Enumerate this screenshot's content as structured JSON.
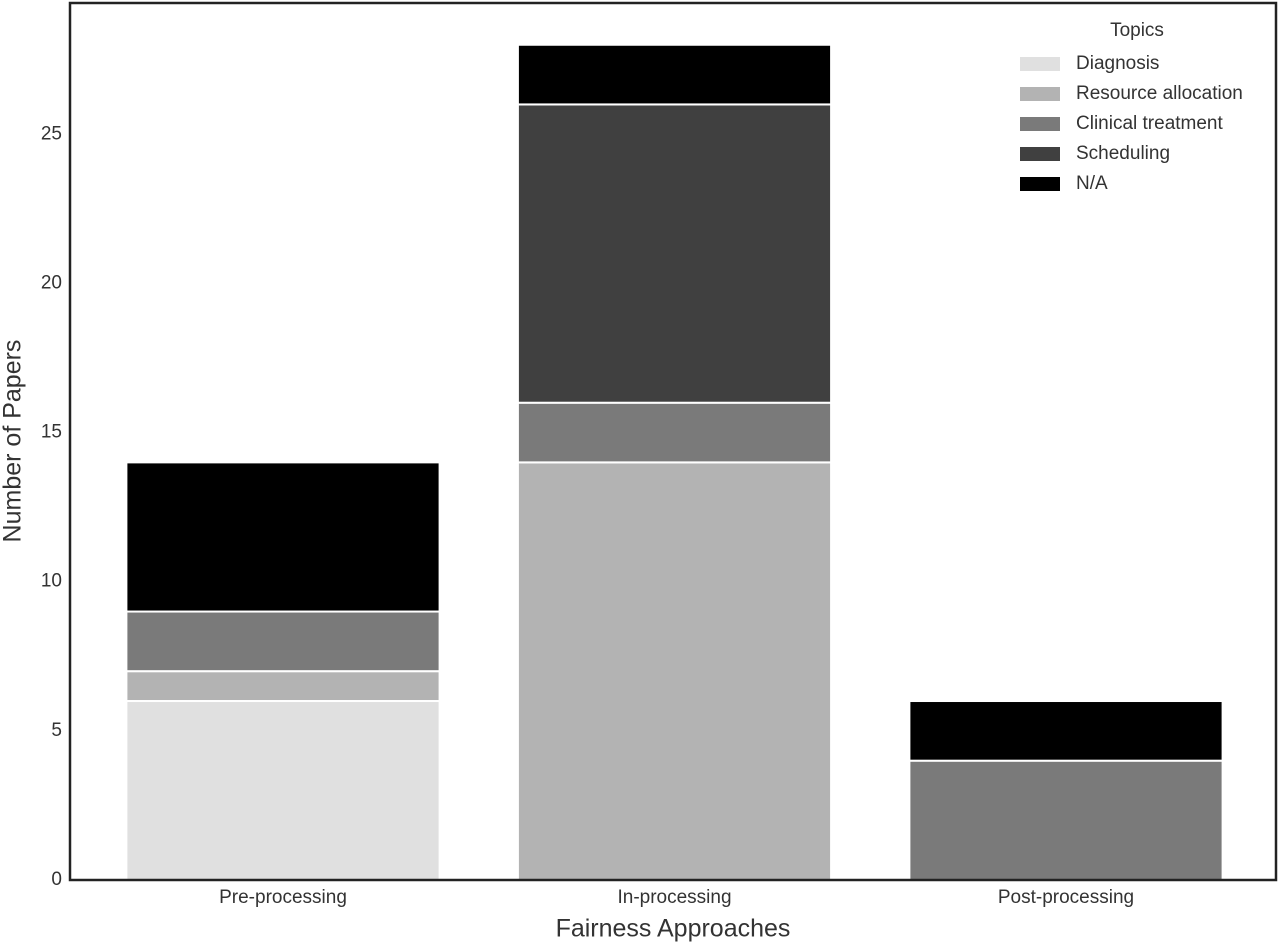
{
  "chart_data": {
    "type": "stacked_bar",
    "x_label": "Fairness Approaches",
    "y_label": "Number of Papers",
    "categories": [
      "Pre-processing",
      "In-processing",
      "Post-processing"
    ],
    "series": [
      {
        "name": "Diagnosis",
        "color": "#e0e0e0",
        "values": [
          6,
          0,
          0
        ]
      },
      {
        "name": "Resource allocation",
        "color": "#b3b3b3",
        "values": [
          1,
          14,
          0
        ]
      },
      {
        "name": "Clinical treatment",
        "color": "#7a7a7a",
        "values": [
          2,
          2,
          4
        ]
      },
      {
        "name": "Scheduling",
        "color": "#404040",
        "values": [
          0,
          10,
          0
        ]
      },
      {
        "name": "N/A",
        "color": "#000000",
        "values": [
          5,
          2,
          2
        ]
      }
    ],
    "legend_title": "Topics",
    "legend_position": "upper right",
    "ylim": [
      0,
      29.4
    ],
    "yticks": [
      0,
      5,
      10,
      15,
      20,
      25
    ],
    "grid": false
  }
}
